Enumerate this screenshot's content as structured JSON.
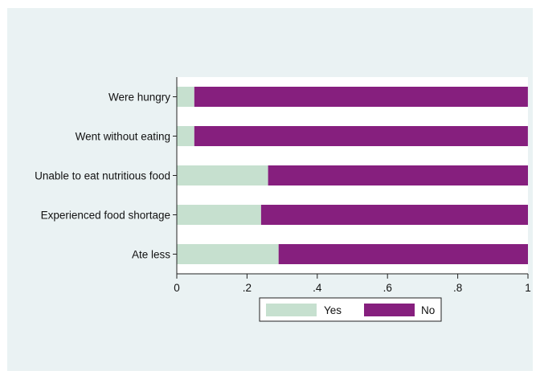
{
  "chart_data": {
    "type": "bar",
    "orientation": "horizontal",
    "stacked": true,
    "categories": [
      "Were hungry",
      "Went without eating",
      "Unable to eat nutritious food",
      "Experienced food shortage",
      "Ate less"
    ],
    "series": [
      {
        "name": "Yes",
        "values": [
          0.05,
          0.05,
          0.26,
          0.24,
          0.29
        ]
      },
      {
        "name": "No",
        "values": [
          0.95,
          0.95,
          0.74,
          0.76,
          0.71
        ]
      }
    ],
    "xlim": [
      0,
      1
    ],
    "xticks": [
      "0",
      ".2",
      ".4",
      ".6",
      ".8",
      "1"
    ],
    "tick_values": [
      0,
      0.2,
      0.4,
      0.6,
      0.8,
      1
    ],
    "grid": false,
    "legend": "bottom",
    "colors": {
      "Yes": "#c6e0cf",
      "No": "#861f7e",
      "plot_bg": "#ffffff",
      "panel_bg": "#eaf2f3"
    }
  }
}
